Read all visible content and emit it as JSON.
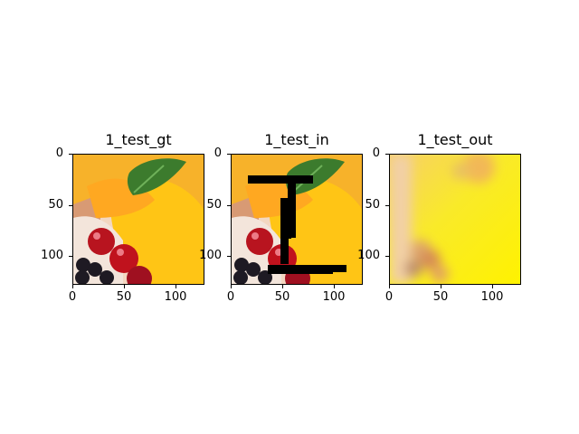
{
  "figure": {
    "panels": [
      {
        "id": "gt",
        "title": "1_test_gt",
        "kind": "ground-truth-image"
      },
      {
        "id": "in",
        "title": "1_test_in",
        "kind": "masked-input-image"
      },
      {
        "id": "out",
        "title": "1_test_out",
        "kind": "blurry-output-image"
      }
    ],
    "y_ticks": [
      "0",
      "50",
      "100"
    ],
    "x_ticks": [
      "0",
      "50",
      "100"
    ]
  },
  "colors": {
    "background": "#ffffff",
    "axis": "#000000",
    "peach": "#f7b22a",
    "leaf": "#3c7b2d",
    "cherry": "#b8141f",
    "berry": "#1e1a23",
    "cream": "#f3e5db",
    "output_yellow": "#f7e51b"
  }
}
